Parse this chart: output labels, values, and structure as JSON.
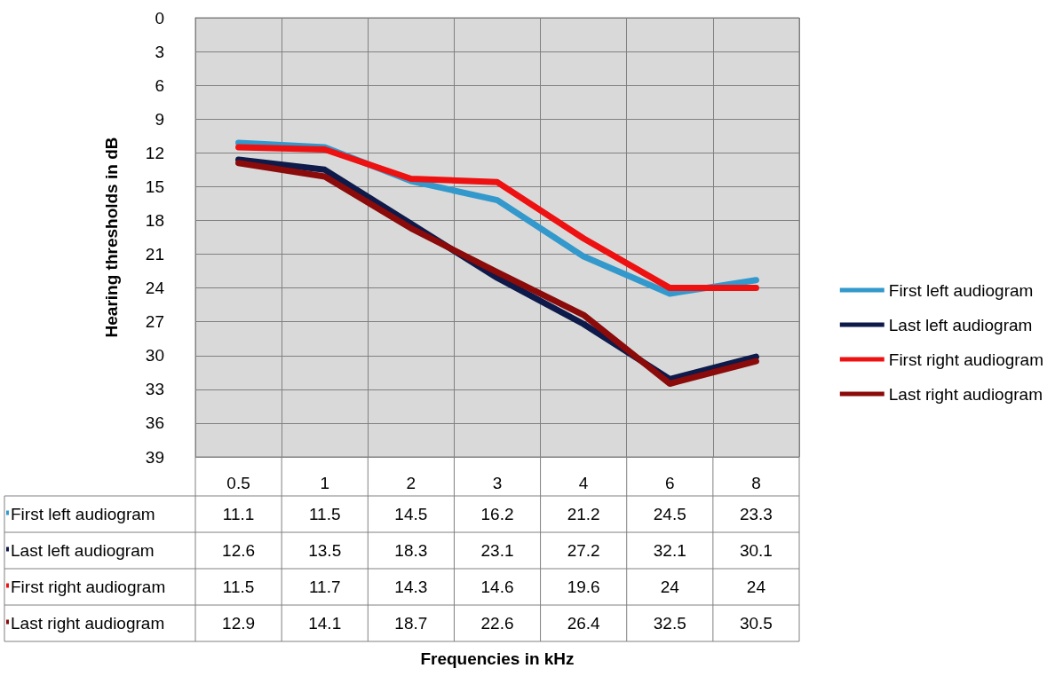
{
  "chart_data": {
    "type": "line",
    "annotations": [
      "Frequencies in kHz"
    ],
    "ylabel": "Hearing thresholds in dB",
    "categories": [
      "0.5",
      "1",
      "2",
      "3",
      "4",
      "6",
      "8"
    ],
    "series": [
      {
        "name": "First left audiogram",
        "color": "#3399cc",
        "values": [
          11.1,
          11.5,
          14.5,
          16.2,
          21.2,
          24.5,
          23.3
        ]
      },
      {
        "name": "Last left audiogram",
        "color": "#0d1a4a",
        "values": [
          12.6,
          13.5,
          18.3,
          23.1,
          27.2,
          32.1,
          30.1
        ]
      },
      {
        "name": "First right audiogram",
        "color": "#ee1111",
        "values": [
          11.5,
          11.7,
          14.3,
          14.6,
          19.6,
          24,
          24
        ]
      },
      {
        "name": "Last right audiogram",
        "color": "#8b0a0a",
        "values": [
          12.9,
          14.1,
          18.7,
          22.6,
          26.4,
          32.5,
          30.5
        ]
      }
    ],
    "ylim": [
      39,
      0
    ],
    "yticks": [
      0,
      3,
      6,
      9,
      12,
      15,
      18,
      21,
      24,
      27,
      30,
      33,
      36,
      39
    ],
    "grid": true,
    "legend": "right",
    "marker": "none",
    "line_style": "solid",
    "data_labels": true
  }
}
